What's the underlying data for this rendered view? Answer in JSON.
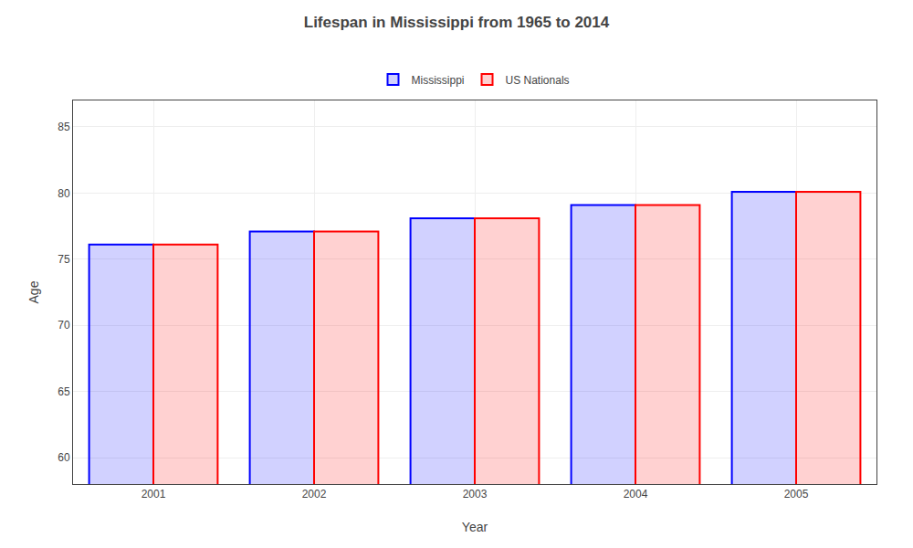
{
  "chart_data": {
    "type": "bar",
    "title": "Lifespan in Mississippi from 1965 to 2014",
    "xlabel": "Year",
    "ylabel": "Age",
    "categories": [
      "2001",
      "2002",
      "2003",
      "2004",
      "2005"
    ],
    "series": [
      {
        "name": "Mississippi",
        "color": "#0000ff",
        "values": [
          76.1,
          77.1,
          78.1,
          79.1,
          80.1
        ]
      },
      {
        "name": "US Nationals",
        "color": "#ff0000",
        "values": [
          76.1,
          77.1,
          78.1,
          79.1,
          80.1
        ]
      }
    ],
    "ylim": [
      58,
      87
    ],
    "yticks": [
      60,
      65,
      70,
      75,
      80,
      85
    ],
    "grid": true,
    "legend": "top"
  }
}
